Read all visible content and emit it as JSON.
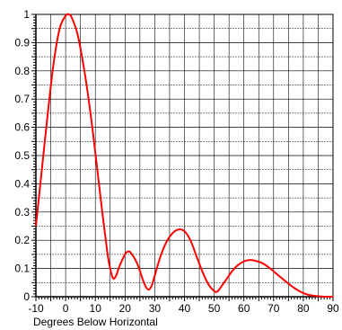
{
  "chart_data": {
    "type": "line",
    "title": "",
    "xlabel": "Degrees Below  Horizontal",
    "ylabel": "",
    "xlim": [
      -10,
      90
    ],
    "ylim": [
      0,
      1
    ],
    "x_ticks": [
      "-10",
      "0",
      "10",
      "20",
      "30",
      "40",
      "50",
      "60",
      "70",
      "80",
      "90"
    ],
    "y_ticks": [
      "0",
      "0.1",
      "0.2",
      "0.3",
      "0.4",
      "0.5",
      "0.6",
      "0.7",
      "0.8",
      "0.9",
      "1"
    ],
    "grid": true,
    "line_color": "#ff0000",
    "series": [
      {
        "x": [
          -10,
          -8,
          -6,
          -4,
          -2,
          0,
          1,
          2,
          4,
          6,
          8,
          10,
          12,
          14,
          15,
          16,
          17,
          18,
          20,
          21,
          22,
          24,
          26,
          27,
          28,
          29,
          30,
          32,
          34,
          36,
          38,
          40,
          42,
          44,
          46,
          48,
          50,
          51,
          52,
          54,
          56,
          58,
          60,
          62,
          64,
          66,
          68,
          70,
          72,
          74,
          76,
          78,
          80,
          82,
          84,
          86,
          88,
          90
        ],
        "y": [
          0.25,
          0.45,
          0.65,
          0.83,
          0.95,
          0.995,
          1.0,
          0.99,
          0.93,
          0.82,
          0.68,
          0.51,
          0.33,
          0.16,
          0.1,
          0.065,
          0.075,
          0.105,
          0.15,
          0.16,
          0.155,
          0.12,
          0.06,
          0.035,
          0.025,
          0.04,
          0.075,
          0.145,
          0.195,
          0.225,
          0.238,
          0.232,
          0.2,
          0.145,
          0.09,
          0.045,
          0.02,
          0.018,
          0.03,
          0.06,
          0.09,
          0.112,
          0.125,
          0.13,
          0.127,
          0.12,
          0.107,
          0.09,
          0.072,
          0.055,
          0.038,
          0.024,
          0.013,
          0.006,
          0.003,
          0.001,
          0.0,
          0.0
        ]
      }
    ]
  }
}
